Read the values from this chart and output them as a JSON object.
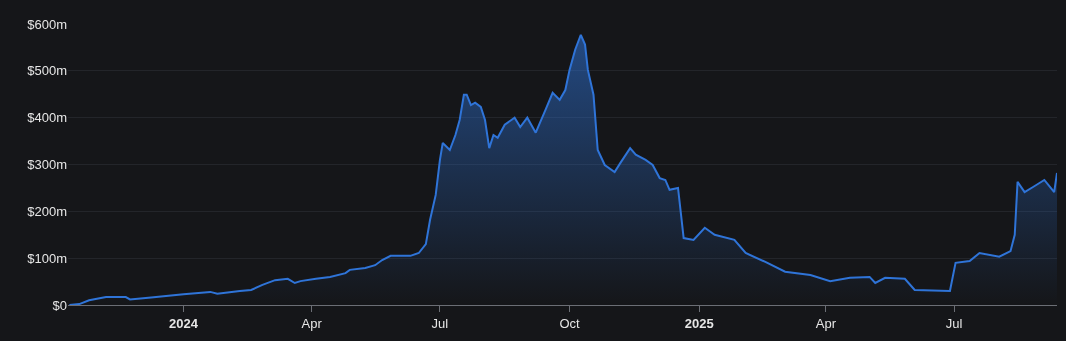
{
  "chart_data": {
    "type": "area",
    "color": "#2f74d8",
    "grid": "y",
    "x": [
      "2023-10-12",
      "2023-10-19",
      "2023-10-26",
      "2023-11-07",
      "2023-11-21",
      "2023-11-24",
      "2023-12-09",
      "2024-01-01",
      "2024-01-20",
      "2024-01-25",
      "2024-02-10",
      "2024-02-18",
      "2024-02-26",
      "2024-03-06",
      "2024-03-15",
      "2024-03-20",
      "2024-03-24",
      "2024-04-04",
      "2024-04-14",
      "2024-04-25",
      "2024-04-28",
      "2024-05-09",
      "2024-05-16",
      "2024-05-21",
      "2024-05-27",
      "2024-06-10",
      "2024-06-16",
      "2024-06-21",
      "2024-06-24",
      "2024-06-28",
      "2024-07-01",
      "2024-07-03",
      "2024-07-08",
      "2024-07-12",
      "2024-07-15",
      "2024-07-18",
      "2024-07-20",
      "2024-07-23",
      "2024-07-26",
      "2024-07-30",
      "2024-08-02",
      "2024-08-05",
      "2024-08-08",
      "2024-08-11",
      "2024-08-16",
      "2024-08-23",
      "2024-08-27",
      "2024-09-01",
      "2024-09-07",
      "2024-09-14",
      "2024-09-19",
      "2024-09-24",
      "2024-09-28",
      "2024-10-01",
      "2024-10-05",
      "2024-10-09",
      "2024-10-12",
      "2024-10-14",
      "2024-10-18",
      "2024-10-21",
      "2024-10-26",
      "2024-11-02",
      "2024-11-06",
      "2024-11-13",
      "2024-11-17",
      "2024-11-24",
      "2024-11-29",
      "2024-12-04",
      "2024-12-08",
      "2024-12-11",
      "2024-12-17",
      "2024-12-21",
      "2024-12-28",
      "2025-01-05",
      "2025-01-12",
      "2025-01-26",
      "2025-02-03",
      "2025-02-17",
      "2025-03-03",
      "2025-03-21",
      "2025-04-04",
      "2025-04-18",
      "2025-05-02",
      "2025-05-06",
      "2025-05-13",
      "2025-05-27",
      "2025-06-03",
      "2025-06-28",
      "2025-07-02",
      "2025-07-12",
      "2025-07-19",
      "2025-08-02",
      "2025-08-10",
      "2025-08-13",
      "2025-08-15",
      "2025-08-20",
      "2025-08-26",
      "2025-09-03",
      "2025-09-07",
      "2025-09-10",
      "2025-09-12"
    ],
    "values": [
      0,
      2,
      10,
      17,
      17,
      12,
      16,
      23,
      28,
      24,
      30,
      32,
      43,
      53,
      56,
      47,
      51,
      56,
      60,
      68,
      75,
      79,
      85,
      96,
      105,
      105,
      111,
      130,
      182,
      235,
      310,
      346,
      331,
      363,
      395,
      449,
      449,
      427,
      432,
      423,
      395,
      335,
      363,
      357,
      385,
      400,
      380,
      400,
      368,
      417,
      453,
      438,
      459,
      502,
      545,
      577,
      556,
      502,
      449,
      331,
      299,
      284,
      303,
      335,
      321,
      310,
      299,
      271,
      267,
      246,
      250,
      143,
      139,
      165,
      150,
      139,
      111,
      92,
      71,
      64,
      51,
      58,
      60,
      47,
      58,
      56,
      32,
      30,
      90,
      94,
      111,
      103,
      115,
      150,
      263,
      241,
      252,
      267,
      252,
      241,
      282
    ],
    "xlim": [
      "2023-10-11",
      "2025-09-12"
    ],
    "xticks": [
      {
        "value": "2024-01-01",
        "label": "2024"
      },
      {
        "value": "2024-04-01",
        "label": "Apr"
      },
      {
        "value": "2024-07-01",
        "label": "Jul"
      },
      {
        "value": "2024-10-01",
        "label": "Oct"
      },
      {
        "value": "2025-01-01",
        "label": "2025"
      },
      {
        "value": "2025-04-01",
        "label": "Apr"
      },
      {
        "value": "2025-07-01",
        "label": "Jul"
      }
    ],
    "ylim": [
      0,
      600
    ],
    "yticks": [
      {
        "value": 0,
        "label": "$0"
      },
      {
        "value": 100,
        "label": "$100m"
      },
      {
        "value": 200,
        "label": "$200m"
      },
      {
        "value": 300,
        "label": "$300m"
      },
      {
        "value": 400,
        "label": "$400m"
      },
      {
        "value": 500,
        "label": "$500m"
      },
      {
        "value": 600,
        "label": "$600m"
      }
    ]
  }
}
